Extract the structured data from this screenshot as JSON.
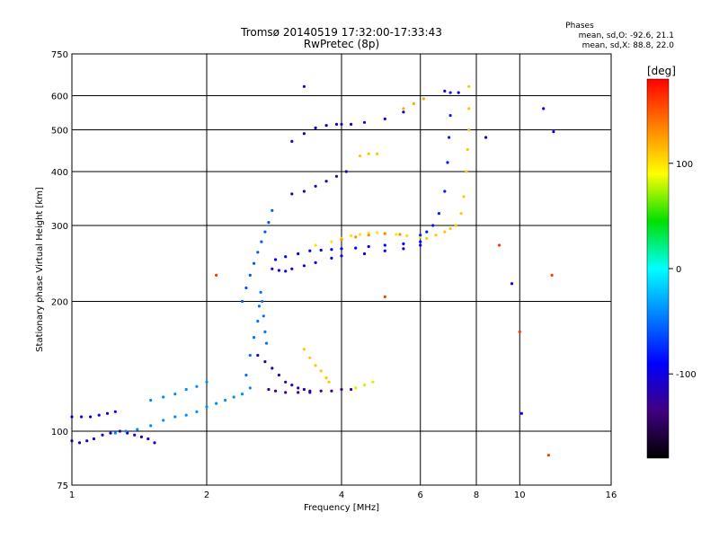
{
  "chart_data": {
    "type": "scatter",
    "title": "Tromsø 20140519 17:32:00-17:33:43",
    "subtitle": "RwPretec (8p)",
    "xlabel": "Frequency [MHz]",
    "ylabel": "Stationary phase Virtual Height [km]",
    "x_scale": "log",
    "y_scale": "log",
    "xlim": [
      1,
      16
    ],
    "ylim": [
      75,
      750
    ],
    "x_ticks": [
      1,
      2,
      4,
      6,
      8,
      10,
      16
    ],
    "y_ticks": [
      75,
      100,
      200,
      300,
      400,
      500,
      600,
      750
    ],
    "grid": true,
    "stats": {
      "heading": "Phases",
      "line_o": "mean, sd,O: -92.6, 21.1",
      "line_x": "mean, sd,X:  88.8, 22.0"
    },
    "colorbar": {
      "label": "[deg]",
      "range": [
        -180,
        180
      ],
      "ticks": [
        100,
        0,
        -100
      ],
      "colors": [
        "#ff0000",
        "#ff8000",
        "#ffff00",
        "#00e000",
        "#00ffff",
        "#0080ff",
        "#0000ff",
        "#400080",
        "#000000"
      ]
    },
    "series": [
      {
        "x": [
          1.0,
          1.04,
          1.08,
          1.12,
          1.17,
          1.22,
          1.28,
          1.33,
          1.38,
          1.43,
          1.48,
          1.53
        ],
        "y": [
          95,
          94,
          95,
          96,
          98,
          99,
          100,
          99,
          98,
          97,
          96,
          94
        ],
        "phase": -110
      },
      {
        "x": [
          1.0,
          1.05,
          1.1,
          1.15,
          1.2,
          1.25
        ],
        "y": [
          108,
          108,
          108,
          109,
          110,
          111
        ],
        "phase": -100
      },
      {
        "x": [
          1.25,
          1.32,
          1.4,
          1.5,
          1.6,
          1.7,
          1.8,
          1.9,
          2.0,
          2.1,
          2.2,
          2.3,
          2.4,
          2.5
        ],
        "y": [
          99,
          100,
          101,
          103,
          106,
          108,
          109,
          111,
          114,
          116,
          118,
          120,
          122,
          126
        ],
        "phase": -40
      },
      {
        "x": [
          1.5,
          1.6,
          1.7,
          1.8,
          1.9,
          2.0
        ],
        "y": [
          118,
          120,
          122,
          125,
          127,
          130
        ],
        "phase": -40
      },
      {
        "x": [
          2.45,
          2.5,
          2.55,
          2.6,
          2.62,
          2.64,
          2.66,
          2.68,
          2.7,
          2.72
        ],
        "y": [
          135,
          150,
          165,
          180,
          195,
          210,
          200,
          185,
          170,
          160
        ],
        "phase": -50
      },
      {
        "x": [
          2.6,
          2.7,
          2.8,
          2.9,
          3.0,
          3.1,
          3.2,
          3.3,
          3.4
        ],
        "y": [
          150,
          145,
          140,
          135,
          130,
          128,
          126,
          125,
          124
        ],
        "phase": -120
      },
      {
        "x": [
          2.75,
          2.85,
          3.0,
          3.2,
          3.4,
          3.6,
          3.8,
          4.0,
          4.2
        ],
        "y": [
          125,
          124,
          123,
          123,
          123,
          124,
          124,
          125,
          125
        ],
        "phase": -130
      },
      {
        "x": [
          3.3,
          3.4,
          3.5,
          3.6,
          3.7,
          3.75
        ],
        "y": [
          155,
          148,
          142,
          138,
          133,
          130
        ],
        "phase": 110
      },
      {
        "x": [
          4.3,
          4.5,
          4.7
        ],
        "y": [
          126,
          128,
          130
        ],
        "phase": 80
      },
      {
        "x": [
          2.4,
          2.45,
          2.5,
          2.55,
          2.6,
          2.65,
          2.7,
          2.75,
          2.8
        ],
        "y": [
          200,
          215,
          230,
          245,
          260,
          275,
          290,
          305,
          325
        ],
        "phase": -60
      },
      {
        "x": [
          2.8,
          2.9,
          3.0,
          3.1,
          3.3,
          3.5,
          3.8,
          4.0,
          4.5,
          5.0,
          5.5,
          6.0
        ],
        "y": [
          238,
          236,
          235,
          238,
          242,
          246,
          252,
          255,
          258,
          262,
          265,
          270
        ],
        "phase": -100
      },
      {
        "x": [
          2.85,
          3.0,
          3.2,
          3.4,
          3.6,
          3.8,
          4.0,
          4.3,
          4.6,
          5.0,
          5.5,
          6.0
        ],
        "y": [
          250,
          254,
          258,
          262,
          263,
          264,
          265,
          266,
          268,
          270,
          272,
          275
        ],
        "phase": -90
      },
      {
        "x": [
          3.5,
          3.8,
          4.0,
          4.2,
          4.4,
          4.6,
          4.8,
          5.0,
          5.3,
          5.6,
          6.0
        ],
        "y": [
          270,
          275,
          280,
          284,
          286,
          288,
          289,
          288,
          286,
          284,
          282
        ],
        "phase": 100
      },
      {
        "x": [
          4.0,
          4.3,
          4.6,
          5.0,
          5.4
        ],
        "y": [
          278,
          282,
          285,
          287,
          286
        ],
        "phase": 130
      },
      {
        "x": [
          6.0,
          6.2,
          6.4,
          6.6,
          6.8,
          6.9,
          6.95,
          7.0,
          7.0
        ],
        "y": [
          285,
          290,
          300,
          320,
          360,
          420,
          480,
          540,
          610
        ],
        "phase": -80
      },
      {
        "x": [
          6.2,
          6.5,
          6.8,
          7.0,
          7.2,
          7.4,
          7.5,
          7.6,
          7.65,
          7.7,
          7.7,
          7.7
        ],
        "y": [
          280,
          285,
          290,
          295,
          300,
          320,
          350,
          400,
          450,
          500,
          560,
          630
        ],
        "phase": 110
      },
      {
        "x": [
          3.1,
          3.3,
          3.5,
          3.7,
          3.9,
          4.0,
          4.2,
          4.5,
          5.0,
          5.5
        ],
        "y": [
          470,
          490,
          505,
          512,
          515,
          515,
          515,
          520,
          530,
          550
        ],
        "phase": -110
      },
      {
        "x": [
          3.1,
          3.3,
          3.5,
          3.7,
          3.9,
          4.1
        ],
        "y": [
          355,
          360,
          370,
          380,
          390,
          400
        ],
        "phase": -120
      },
      {
        "x": [
          4.4,
          4.6,
          4.8
        ],
        "y": [
          435,
          440,
          440
        ],
        "phase": 110
      },
      {
        "x": [
          5.5,
          5.8,
          6.1
        ],
        "y": [
          560,
          575,
          590
        ],
        "phase": 120
      },
      {
        "x": [
          3.3,
          6.8,
          7.3,
          8.4,
          9.6,
          10.1,
          11.3,
          11.9
        ],
        "y": [
          630,
          615,
          610,
          480,
          220,
          110,
          560,
          495
        ],
        "phase": -100
      },
      {
        "x": [
          2.1,
          5.0,
          9.0,
          10.0,
          11.6,
          11.8
        ],
        "y": [
          230,
          205,
          270,
          170,
          88,
          230
        ],
        "phase": 160
      }
    ]
  }
}
